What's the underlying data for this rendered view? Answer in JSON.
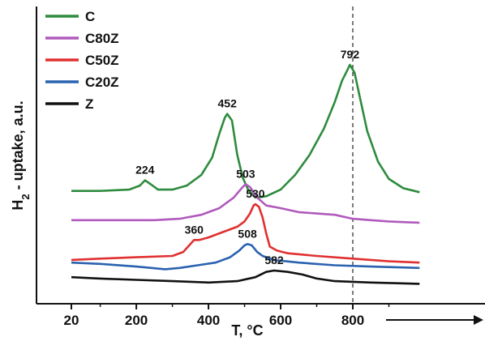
{
  "chart_data": {
    "type": "line",
    "title": "",
    "xlabel": "T, °C",
    "ylabel": "H2 - uptake, a.u.",
    "ylabel_main": "H",
    "ylabel_sub": "2",
    "ylabel_rest": " - uptake, a.u.",
    "xlim": [
      20,
      1000
    ],
    "y_ticks_shown": false,
    "x_ticks": [
      20,
      200,
      400,
      600,
      800
    ],
    "x_tick_labels": [
      "20",
      "200",
      "400",
      "600",
      "800"
    ],
    "grid": false,
    "legend_position": "top-left",
    "reference_line_x": 800,
    "axis_arrow": true,
    "series": [
      {
        "name": "C",
        "color": "#2e8b3e",
        "points": [
          [
            20,
            0.85
          ],
          [
            100,
            0.85
          ],
          [
            180,
            0.86
          ],
          [
            210,
            0.89
          ],
          [
            224,
            0.93
          ],
          [
            240,
            0.9
          ],
          [
            260,
            0.86
          ],
          [
            300,
            0.86
          ],
          [
            340,
            0.89
          ],
          [
            380,
            0.97
          ],
          [
            410,
            1.1
          ],
          [
            430,
            1.28
          ],
          [
            445,
            1.4
          ],
          [
            452,
            1.43
          ],
          [
            465,
            1.38
          ],
          [
            480,
            1.12
          ],
          [
            495,
            0.95
          ],
          [
            510,
            0.86
          ],
          [
            530,
            0.8
          ],
          [
            560,
            0.81
          ],
          [
            600,
            0.86
          ],
          [
            640,
            0.97
          ],
          [
            680,
            1.12
          ],
          [
            720,
            1.32
          ],
          [
            750,
            1.52
          ],
          [
            770,
            1.68
          ],
          [
            785,
            1.76
          ],
          [
            792,
            1.8
          ],
          [
            805,
            1.74
          ],
          [
            820,
            1.55
          ],
          [
            840,
            1.3
          ],
          [
            870,
            1.07
          ],
          [
            900,
            0.94
          ],
          [
            940,
            0.87
          ],
          [
            985,
            0.84
          ]
        ]
      },
      {
        "name": "C80Z",
        "color": "#b05abc",
        "points": [
          [
            20,
            0.63
          ],
          [
            150,
            0.63
          ],
          [
            250,
            0.63
          ],
          [
            320,
            0.64
          ],
          [
            380,
            0.67
          ],
          [
            430,
            0.72
          ],
          [
            470,
            0.8
          ],
          [
            495,
            0.88
          ],
          [
            503,
            0.9
          ],
          [
            515,
            0.88
          ],
          [
            535,
            0.8
          ],
          [
            560,
            0.74
          ],
          [
            600,
            0.72
          ],
          [
            650,
            0.69
          ],
          [
            700,
            0.68
          ],
          [
            750,
            0.67
          ],
          [
            800,
            0.64
          ],
          [
            850,
            0.63
          ],
          [
            900,
            0.62
          ],
          [
            985,
            0.61
          ]
        ]
      },
      {
        "name": "C50Z",
        "color": "#e03030",
        "points": [
          [
            20,
            0.33
          ],
          [
            100,
            0.34
          ],
          [
            200,
            0.35
          ],
          [
            300,
            0.36
          ],
          [
            330,
            0.39
          ],
          [
            350,
            0.45
          ],
          [
            360,
            0.48
          ],
          [
            375,
            0.48
          ],
          [
            400,
            0.5
          ],
          [
            440,
            0.54
          ],
          [
            480,
            0.58
          ],
          [
            500,
            0.62
          ],
          [
            515,
            0.68
          ],
          [
            525,
            0.74
          ],
          [
            530,
            0.75
          ],
          [
            540,
            0.73
          ],
          [
            550,
            0.65
          ],
          [
            560,
            0.53
          ],
          [
            570,
            0.43
          ],
          [
            590,
            0.4
          ],
          [
            620,
            0.38
          ],
          [
            700,
            0.36
          ],
          [
            800,
            0.34
          ],
          [
            900,
            0.32
          ],
          [
            985,
            0.31
          ]
        ]
      },
      {
        "name": "C20Z",
        "color": "#2a62b0",
        "points": [
          [
            20,
            0.31
          ],
          [
            100,
            0.3
          ],
          [
            200,
            0.28
          ],
          [
            280,
            0.26
          ],
          [
            320,
            0.27
          ],
          [
            370,
            0.29
          ],
          [
            420,
            0.31
          ],
          [
            460,
            0.35
          ],
          [
            485,
            0.4
          ],
          [
            500,
            0.44
          ],
          [
            508,
            0.45
          ],
          [
            520,
            0.44
          ],
          [
            535,
            0.39
          ],
          [
            550,
            0.36
          ],
          [
            580,
            0.33
          ],
          [
            650,
            0.31
          ],
          [
            750,
            0.29
          ],
          [
            850,
            0.28
          ],
          [
            985,
            0.27
          ]
        ]
      },
      {
        "name": "Z",
        "color": "#111111",
        "points": [
          [
            20,
            0.2
          ],
          [
            100,
            0.19
          ],
          [
            200,
            0.18
          ],
          [
            300,
            0.17
          ],
          [
            400,
            0.16
          ],
          [
            480,
            0.17
          ],
          [
            530,
            0.2
          ],
          [
            560,
            0.24
          ],
          [
            582,
            0.25
          ],
          [
            620,
            0.24
          ],
          [
            660,
            0.22
          ],
          [
            700,
            0.19
          ],
          [
            750,
            0.17
          ],
          [
            850,
            0.16
          ],
          [
            985,
            0.15
          ]
        ]
      }
    ],
    "peak_labels": [
      {
        "text": "224",
        "x": 224,
        "y": 0.93,
        "color": "#2e8b3e"
      },
      {
        "text": "452",
        "x": 452,
        "y": 1.43,
        "color": "#2e8b3e"
      },
      {
        "text": "792",
        "x": 792,
        "y": 1.8,
        "color": "#2e8b3e"
      },
      {
        "text": "503",
        "x": 503,
        "y": 0.9,
        "color": "#b05abc"
      },
      {
        "text": "530",
        "x": 530,
        "y": 0.75,
        "color": "#e03030"
      },
      {
        "text": "360",
        "x": 360,
        "y": 0.48,
        "color": "#e03030"
      },
      {
        "text": "508",
        "x": 508,
        "y": 0.45,
        "color": "#2a62b0"
      },
      {
        "text": "582",
        "x": 582,
        "y": 0.25,
        "color": "#111111"
      }
    ]
  }
}
